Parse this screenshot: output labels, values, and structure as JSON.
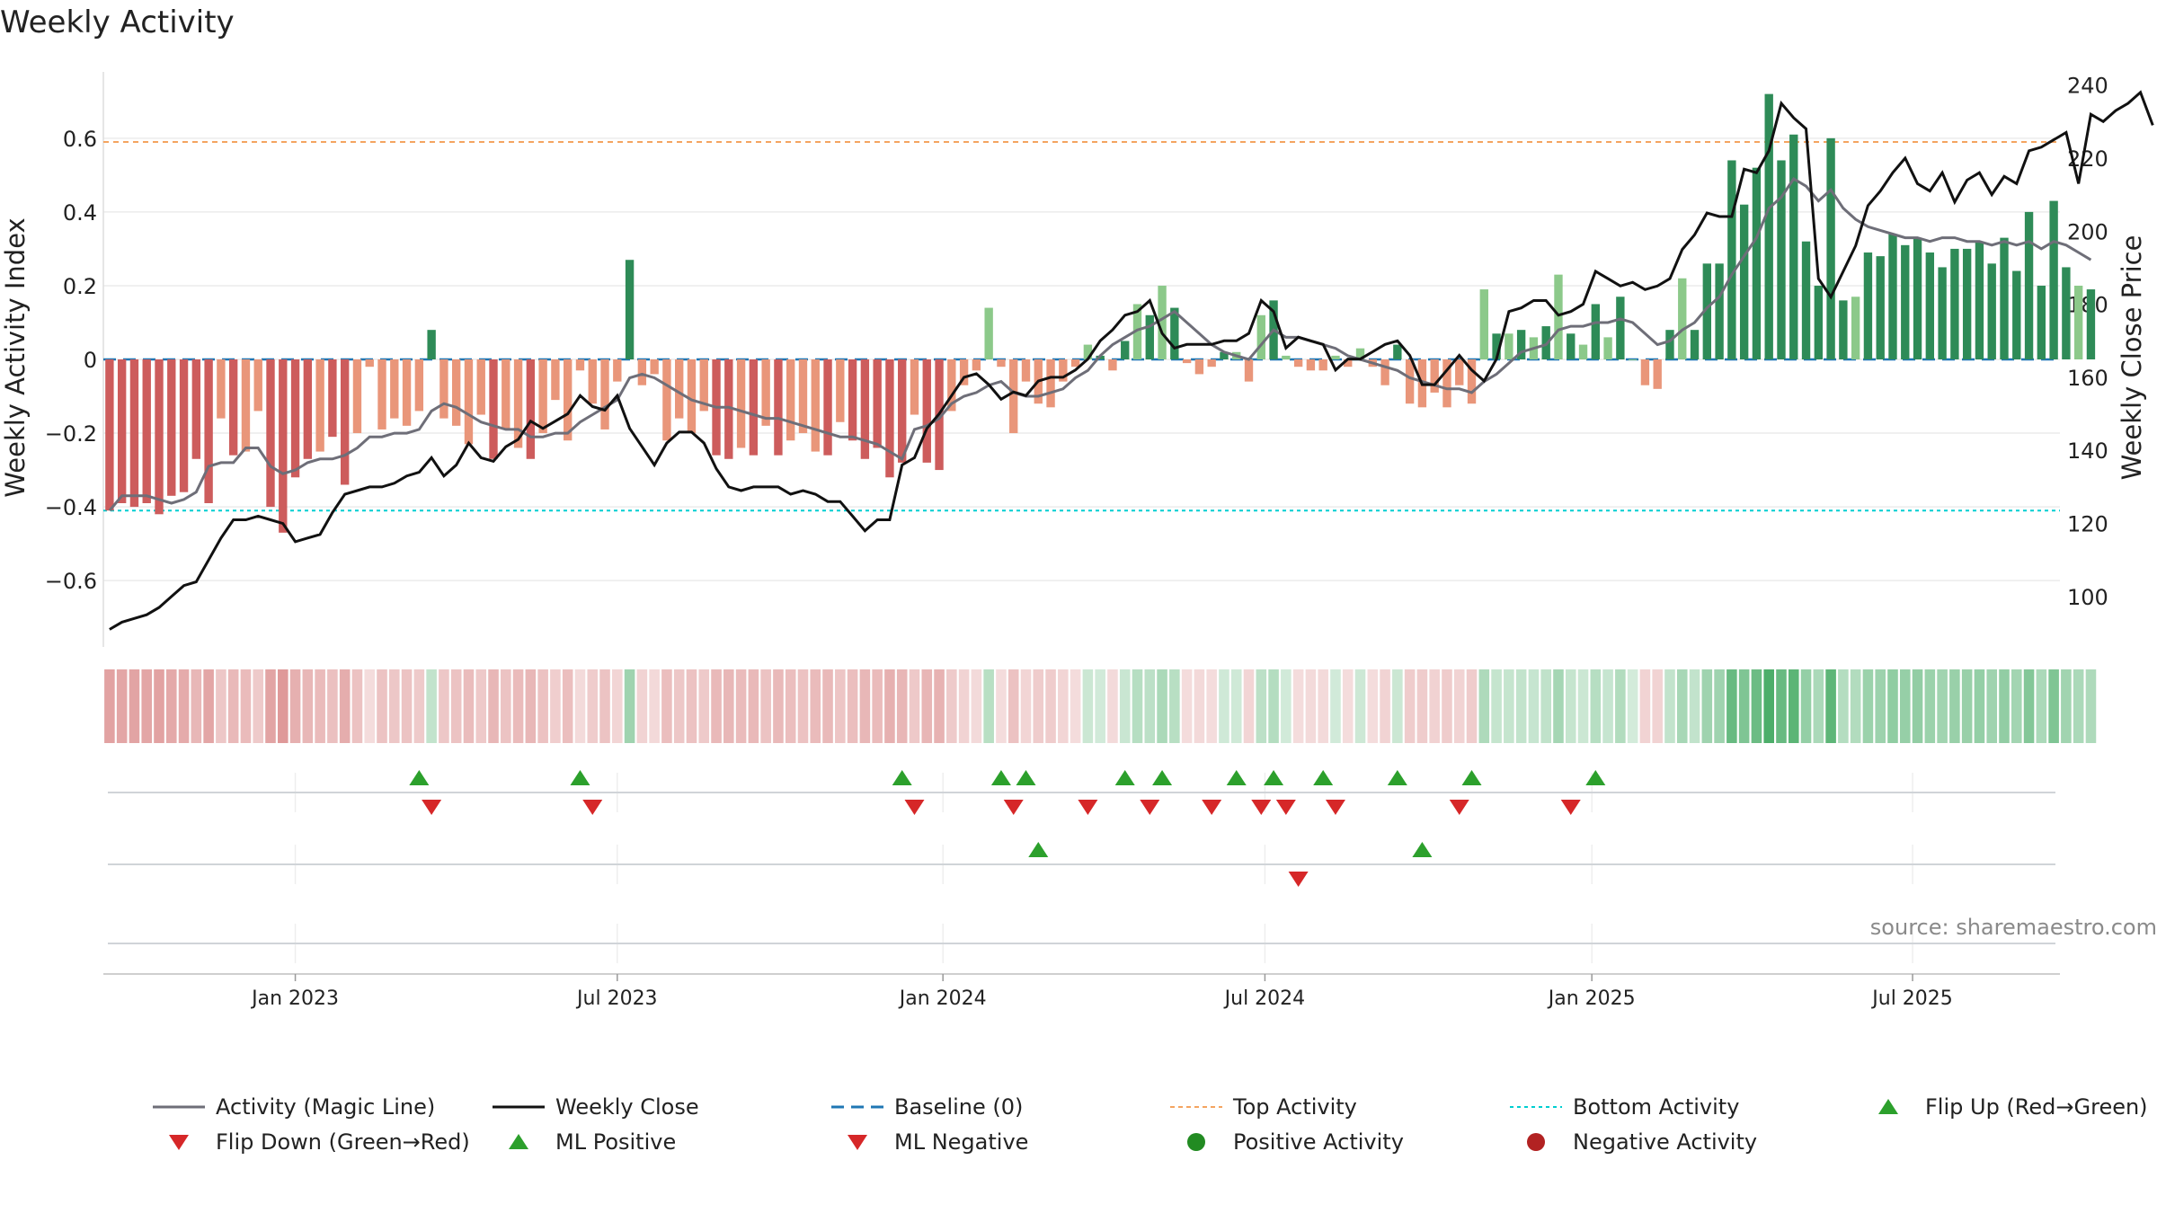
{
  "chart_data": {
    "type": "bar",
    "title": "Weekly Activity",
    "ylabel": "Weekly Activity Index",
    "y2label": "Weekly Close Price",
    "ylim": [
      -0.78,
      0.78
    ],
    "y2lim": [
      86.2,
      243.6
    ],
    "yticks": [
      0.6,
      0.4,
      0.2,
      0,
      -0.2,
      -0.4,
      -0.6
    ],
    "ytick_labels": [
      "0.6",
      "0.4",
      "0.2",
      "0",
      "−0.2",
      "−0.4",
      "−0.6"
    ],
    "y2ticks": [
      240,
      220,
      200,
      180,
      160,
      140,
      120,
      100
    ],
    "y2tick_labels": [
      "240",
      "220",
      "200",
      "180",
      "160",
      "140",
      "120",
      "100"
    ],
    "x_range": [
      0,
      158
    ],
    "xticks": [
      {
        "label": "Jan 2023",
        "x": 15
      },
      {
        "label": "Jul 2023",
        "x": 41
      },
      {
        "label": "Jan 2024",
        "x": 67.3
      },
      {
        "label": "Jul 2024",
        "x": 93.3
      },
      {
        "label": "Jan 2025",
        "x": 119.7
      },
      {
        "label": "Jul 2025",
        "x": 145.6
      }
    ],
    "top_activity": 0.59,
    "bottom_activity": -0.41,
    "colors": {
      "pos_strong": "#2e8b57",
      "pos_light": "#8cc98a",
      "neg_strong": "#cd5c5c",
      "neg_light": "#e9967a",
      "close": "#111111",
      "magic": "#6e6e78",
      "baseline": "#1f77b4",
      "top": "#f4a460",
      "bottom": "#00ced1",
      "up_marker": "#2ca02c",
      "down_marker": "#d62728",
      "pos_dot": "#228b22",
      "neg_dot": "#b22222"
    },
    "activity": [
      -0.41,
      -0.39,
      -0.4,
      -0.39,
      -0.42,
      -0.37,
      -0.36,
      -0.27,
      -0.39,
      -0.16,
      -0.26,
      -0.25,
      -0.14,
      -0.4,
      -0.47,
      -0.32,
      -0.27,
      -0.25,
      -0.21,
      -0.34,
      -0.2,
      -0.02,
      -0.19,
      -0.16,
      -0.18,
      -0.14,
      0.08,
      -0.16,
      -0.18,
      -0.23,
      -0.15,
      -0.27,
      -0.19,
      -0.24,
      -0.27,
      -0.2,
      -0.11,
      -0.22,
      -0.03,
      -0.12,
      -0.19,
      -0.06,
      0.27,
      -0.07,
      -0.04,
      -0.22,
      -0.16,
      -0.2,
      -0.14,
      -0.26,
      -0.27,
      -0.24,
      -0.26,
      -0.18,
      -0.26,
      -0.22,
      -0.2,
      -0.25,
      -0.26,
      -0.17,
      -0.22,
      -0.27,
      -0.24,
      -0.32,
      -0.28,
      -0.15,
      -0.28,
      -0.3,
      -0.14,
      -0.07,
      -0.03,
      0.14,
      -0.02,
      -0.2,
      -0.06,
      -0.12,
      -0.13,
      -0.06,
      -0.02,
      0.04,
      0.01,
      -0.03,
      0.05,
      0.15,
      0.12,
      0.2,
      0.14,
      -0.01,
      -0.04,
      -0.02,
      0.02,
      0.02,
      -0.06,
      0.12,
      0.16,
      0.01,
      -0.02,
      -0.03,
      -0.03,
      0.01,
      -0.02,
      0.03,
      -0.02,
      -0.07,
      0.04,
      -0.12,
      -0.13,
      -0.09,
      -0.13,
      -0.07,
      -0.12,
      0.19,
      0.07,
      0.07,
      0.08,
      0.06,
      0.09,
      0.23,
      0.07,
      0.04,
      0.15,
      0.06,
      0.17,
      0.0,
      -0.07,
      -0.08,
      0.08,
      0.22,
      0.08,
      0.26,
      0.26,
      0.54,
      0.42,
      0.52,
      0.72,
      0.54,
      0.61,
      0.32,
      0.2,
      0.6,
      0.16,
      0.17,
      0.29,
      0.28,
      0.34,
      0.31,
      0.33,
      0.29,
      0.25,
      0.3,
      0.3,
      0.32,
      0.26,
      0.33,
      0.24,
      0.4,
      0.2,
      0.43,
      0.25,
      0.2,
      0.19
    ],
    "close": [
      91,
      93,
      94,
      95,
      97,
      100,
      103,
      104,
      110,
      116,
      121,
      121,
      122,
      121,
      120,
      115,
      116,
      117,
      123,
      128,
      129,
      130,
      130,
      131,
      133,
      134,
      138,
      133,
      136,
      142,
      138,
      137,
      141,
      143,
      148,
      146,
      148,
      150,
      155,
      152,
      151,
      155,
      146,
      141,
      136,
      142,
      145,
      145,
      142,
      135,
      130,
      129,
      130,
      130,
      130,
      128,
      129,
      128,
      126,
      126,
      122,
      118,
      121,
      121,
      136,
      138,
      146,
      150,
      155,
      160,
      161,
      158,
      154,
      156,
      155,
      159,
      160,
      160,
      162,
      165,
      170,
      173,
      177,
      178,
      181,
      172,
      168,
      169,
      169,
      169,
      170,
      170,
      172,
      181,
      178,
      168,
      171,
      170,
      169,
      162,
      165,
      165,
      167,
      169,
      170,
      166,
      158,
      158,
      162,
      166,
      162,
      159,
      165,
      178,
      179,
      181,
      181,
      177,
      178,
      180,
      189,
      187,
      185,
      186,
      184,
      185,
      187,
      195,
      199,
      205,
      204,
      204,
      217,
      216,
      222,
      235,
      231,
      228,
      187,
      182,
      189,
      196,
      207,
      211,
      216,
      220,
      213,
      211,
      216,
      208,
      214,
      216,
      210,
      215,
      213,
      222,
      223,
      225,
      227,
      213,
      232,
      230,
      233,
      235,
      238,
      229
    ],
    "magic": [
      -0.41,
      -0.37,
      -0.37,
      -0.37,
      -0.38,
      -0.39,
      -0.38,
      -0.36,
      -0.29,
      -0.28,
      -0.28,
      -0.24,
      -0.24,
      -0.29,
      -0.31,
      -0.3,
      -0.28,
      -0.27,
      -0.27,
      -0.26,
      -0.24,
      -0.21,
      -0.21,
      -0.2,
      -0.2,
      -0.19,
      -0.14,
      -0.12,
      -0.13,
      -0.15,
      -0.17,
      -0.18,
      -0.19,
      -0.19,
      -0.21,
      -0.21,
      -0.2,
      -0.2,
      -0.17,
      -0.15,
      -0.13,
      -0.11,
      -0.05,
      -0.04,
      -0.05,
      -0.07,
      -0.09,
      -0.11,
      -0.12,
      -0.13,
      -0.13,
      -0.14,
      -0.15,
      -0.16,
      -0.16,
      -0.17,
      -0.18,
      -0.19,
      -0.2,
      -0.21,
      -0.21,
      -0.22,
      -0.23,
      -0.25,
      -0.27,
      -0.19,
      -0.18,
      -0.16,
      -0.12,
      -0.1,
      -0.09,
      -0.07,
      -0.06,
      -0.09,
      -0.1,
      -0.1,
      -0.09,
      -0.08,
      -0.05,
      -0.03,
      0.01,
      0.04,
      0.06,
      0.08,
      0.09,
      0.11,
      0.13,
      0.1,
      0.07,
      0.04,
      0.02,
      0.01,
      0.0,
      0.04,
      0.08,
      0.06,
      0.06,
      0.05,
      0.04,
      0.03,
      0.01,
      0.0,
      -0.01,
      -0.02,
      -0.03,
      -0.05,
      -0.06,
      -0.07,
      -0.08,
      -0.08,
      -0.09,
      -0.06,
      -0.04,
      -0.01,
      0.02,
      0.03,
      0.04,
      0.08,
      0.09,
      0.09,
      0.1,
      0.1,
      0.11,
      0.1,
      0.07,
      0.04,
      0.05,
      0.08,
      0.1,
      0.14,
      0.17,
      0.23,
      0.28,
      0.33,
      0.41,
      0.44,
      0.49,
      0.47,
      0.43,
      0.46,
      0.41,
      0.38,
      0.36,
      0.35,
      0.34,
      0.33,
      0.33,
      0.32,
      0.33,
      0.33,
      0.32,
      0.32,
      0.31,
      0.32,
      0.31,
      0.32,
      0.3,
      0.32,
      0.31,
      0.29,
      0.27
    ],
    "flip_up": [
      25,
      38,
      64,
      72,
      74,
      82,
      85,
      91,
      94,
      98,
      104,
      110,
      120
    ],
    "flip_down": [
      26,
      39,
      65,
      73,
      79,
      84,
      89,
      93,
      95,
      99,
      109,
      118
    ],
    "ml_positive": [
      75,
      106
    ],
    "ml_negative": [
      96
    ],
    "source": "source: sharemaestro.com",
    "legend": [
      {
        "key": "magic",
        "label": "Activity (Magic Line)"
      },
      {
        "key": "close",
        "label": "Weekly Close"
      },
      {
        "key": "baseline",
        "label": "Baseline (0)"
      },
      {
        "key": "top",
        "label": "Top Activity"
      },
      {
        "key": "bottom",
        "label": "Bottom Activity"
      },
      {
        "key": "flip_up",
        "label": "Flip Up (Red→Green)"
      },
      {
        "key": "flip_down",
        "label": "Flip Down (Green→Red)"
      },
      {
        "key": "ml_positive",
        "label": "ML Positive"
      },
      {
        "key": "ml_negative",
        "label": "ML Negative"
      },
      {
        "key": "pos_dot",
        "label": "Positive Activity"
      },
      {
        "key": "neg_dot",
        "label": "Negative Activity"
      }
    ]
  }
}
